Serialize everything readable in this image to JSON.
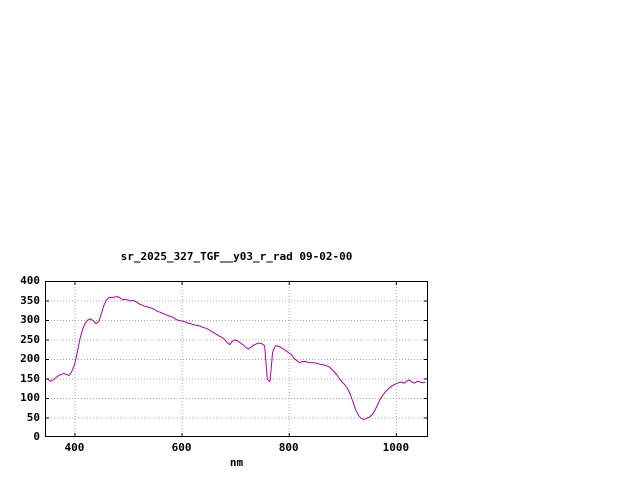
{
  "colors": {
    "background": "#ffffff",
    "axis": "#000000",
    "grid": "#a8a8a8",
    "text": "#000000",
    "line": "#b000b0"
  },
  "chart_data": {
    "type": "line",
    "title": "sr_2025_327_TGF__y03_r_rad 09-02-00",
    "xlabel": "nm",
    "ylabel": "",
    "xlim": [
      345,
      1060
    ],
    "ylim": [
      0,
      400
    ],
    "xticks": [
      400,
      600,
      800,
      1000
    ],
    "yticks": [
      0,
      50,
      100,
      150,
      200,
      250,
      300,
      350,
      400
    ],
    "grid": true,
    "legend_position": "none",
    "points": [
      [
        350,
        148
      ],
      [
        355,
        143
      ],
      [
        360,
        146
      ],
      [
        365,
        152
      ],
      [
        370,
        157
      ],
      [
        375,
        160
      ],
      [
        380,
        163
      ],
      [
        385,
        160
      ],
      [
        390,
        158
      ],
      [
        395,
        168
      ],
      [
        400,
        185
      ],
      [
        405,
        215
      ],
      [
        410,
        250
      ],
      [
        415,
        275
      ],
      [
        420,
        292
      ],
      [
        425,
        300
      ],
      [
        430,
        303
      ],
      [
        435,
        298
      ],
      [
        440,
        291
      ],
      [
        445,
        295
      ],
      [
        450,
        315
      ],
      [
        455,
        338
      ],
      [
        460,
        352
      ],
      [
        465,
        358
      ],
      [
        470,
        357
      ],
      [
        475,
        359
      ],
      [
        480,
        360
      ],
      [
        485,
        357
      ],
      [
        490,
        352
      ],
      [
        495,
        353
      ],
      [
        500,
        351
      ],
      [
        505,
        349
      ],
      [
        510,
        350
      ],
      [
        515,
        347
      ],
      [
        520,
        342
      ],
      [
        525,
        339
      ],
      [
        530,
        336
      ],
      [
        535,
        334
      ],
      [
        540,
        332
      ],
      [
        545,
        330
      ],
      [
        550,
        327
      ],
      [
        555,
        322
      ],
      [
        560,
        320
      ],
      [
        565,
        317
      ],
      [
        570,
        314
      ],
      [
        575,
        311
      ],
      [
        580,
        309
      ],
      [
        585,
        306
      ],
      [
        590,
        301
      ],
      [
        595,
        299
      ],
      [
        600,
        297
      ],
      [
        605,
        296
      ],
      [
        610,
        293
      ],
      [
        615,
        291
      ],
      [
        620,
        289
      ],
      [
        625,
        287
      ],
      [
        630,
        286
      ],
      [
        635,
        284
      ],
      [
        640,
        281
      ],
      [
        645,
        279
      ],
      [
        650,
        276
      ],
      [
        655,
        271
      ],
      [
        660,
        268
      ],
      [
        665,
        263
      ],
      [
        670,
        259
      ],
      [
        675,
        256
      ],
      [
        680,
        251
      ],
      [
        685,
        242
      ],
      [
        690,
        237
      ],
      [
        695,
        246
      ],
      [
        700,
        249
      ],
      [
        705,
        246
      ],
      [
        710,
        241
      ],
      [
        715,
        236
      ],
      [
        720,
        229
      ],
      [
        725,
        226
      ],
      [
        730,
        231
      ],
      [
        735,
        236
      ],
      [
        740,
        239
      ],
      [
        745,
        241
      ],
      [
        750,
        239
      ],
      [
        755,
        234
      ],
      [
        760,
        148
      ],
      [
        765,
        142
      ],
      [
        770,
        218
      ],
      [
        775,
        234
      ],
      [
        780,
        233
      ],
      [
        785,
        230
      ],
      [
        790,
        226
      ],
      [
        795,
        221
      ],
      [
        800,
        216
      ],
      [
        805,
        211
      ],
      [
        810,
        201
      ],
      [
        815,
        196
      ],
      [
        820,
        191
      ],
      [
        825,
        193
      ],
      [
        830,
        194
      ],
      [
        835,
        192
      ],
      [
        840,
        191
      ],
      [
        845,
        190
      ],
      [
        850,
        190
      ],
      [
        855,
        188
      ],
      [
        860,
        186
      ],
      [
        865,
        185
      ],
      [
        870,
        183
      ],
      [
        875,
        180
      ],
      [
        880,
        174
      ],
      [
        885,
        167
      ],
      [
        890,
        159
      ],
      [
        895,
        149
      ],
      [
        900,
        140
      ],
      [
        905,
        134
      ],
      [
        910,
        124
      ],
      [
        915,
        109
      ],
      [
        920,
        90
      ],
      [
        925,
        70
      ],
      [
        930,
        56
      ],
      [
        935,
        48
      ],
      [
        940,
        45
      ],
      [
        945,
        47
      ],
      [
        950,
        51
      ],
      [
        955,
        56
      ],
      [
        960,
        66
      ],
      [
        965,
        80
      ],
      [
        970,
        95
      ],
      [
        975,
        106
      ],
      [
        980,
        115
      ],
      [
        985,
        122
      ],
      [
        990,
        128
      ],
      [
        995,
        133
      ],
      [
        1000,
        136
      ],
      [
        1005,
        139
      ],
      [
        1010,
        141
      ],
      [
        1015,
        138
      ],
      [
        1020,
        143
      ],
      [
        1025,
        146
      ],
      [
        1030,
        141
      ],
      [
        1035,
        138
      ],
      [
        1040,
        143
      ],
      [
        1045,
        141
      ],
      [
        1050,
        139
      ],
      [
        1055,
        141
      ]
    ]
  }
}
